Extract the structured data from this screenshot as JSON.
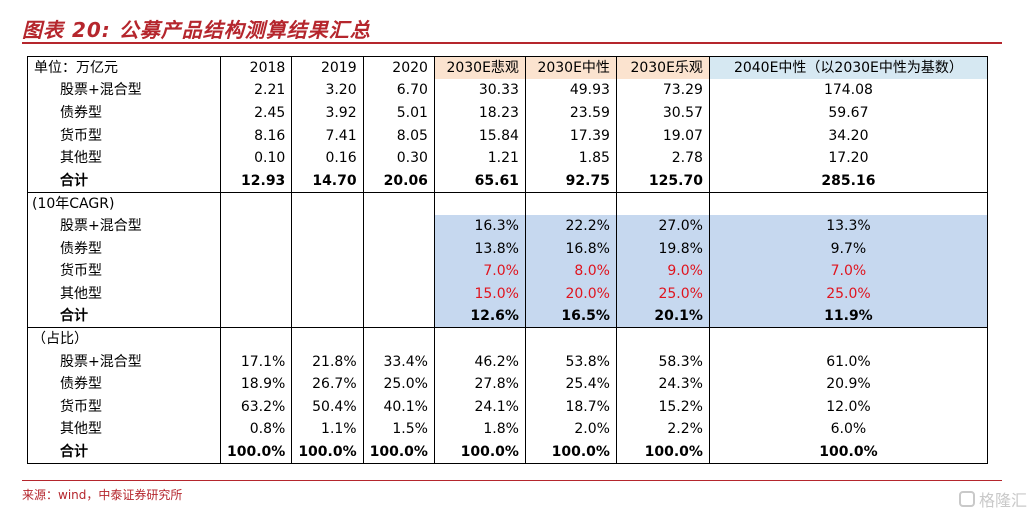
{
  "title": "图表 20:   公募产品结构测算结果汇总",
  "source": "来源：wind，中泰证券研究所",
  "watermark": "格隆汇",
  "header": [
    "单位：万亿元",
    "2018",
    "2019",
    "2020",
    "2030E悲观",
    "2030E中性",
    "2030E乐观",
    "2040E中性（以2030E中性为基数）"
  ],
  "sections": [
    {
      "section_label": "",
      "rows": [
        {
          "label": "股票+混合型",
          "values": [
            "2.21",
            "3.20",
            "6.70",
            "30.33",
            "49.93",
            "73.29",
            "174.08"
          ]
        },
        {
          "label": "债券型",
          "values": [
            "2.45",
            "3.92",
            "5.01",
            "18.23",
            "23.59",
            "30.57",
            "59.67"
          ]
        },
        {
          "label": "货币型",
          "values": [
            "8.16",
            "7.41",
            "8.05",
            "15.84",
            "17.39",
            "19.07",
            "34.20"
          ]
        },
        {
          "label": "其他型",
          "values": [
            "0.10",
            "0.16",
            "0.30",
            "1.21",
            "1.85",
            "2.78",
            "17.20"
          ]
        }
      ],
      "total": {
        "label": "合计",
        "values": [
          "12.93",
          "14.70",
          "20.06",
          "65.61",
          "92.75",
          "125.70",
          "285.16"
        ]
      }
    },
    {
      "section_label": "(10年CAGR)",
      "rows": [
        {
          "label": "股票+混合型",
          "values": [
            "",
            "",
            "",
            "16.3%",
            "22.2%",
            "27.0%",
            "13.3%"
          ]
        },
        {
          "label": "债券型",
          "values": [
            "",
            "",
            "",
            "13.8%",
            "16.8%",
            "19.8%",
            "9.7%"
          ]
        },
        {
          "label": "货币型",
          "values": [
            "",
            "",
            "",
            "7.0%",
            "8.0%",
            "9.0%",
            "7.0%"
          ]
        },
        {
          "label": "其他型",
          "values": [
            "",
            "",
            "",
            "15.0%",
            "20.0%",
            "25.0%",
            "25.0%"
          ]
        }
      ],
      "total": {
        "label": "合计",
        "values": [
          "",
          "",
          "",
          "12.6%",
          "16.5%",
          "20.1%",
          "11.9%"
        ]
      }
    },
    {
      "section_label": "（占比）",
      "rows": [
        {
          "label": "股票+混合型",
          "values": [
            "17.1%",
            "21.8%",
            "33.4%",
            "46.2%",
            "53.8%",
            "58.3%",
            "61.0%"
          ]
        },
        {
          "label": "债券型",
          "values": [
            "18.9%",
            "26.7%",
            "25.0%",
            "27.8%",
            "25.4%",
            "24.3%",
            "20.9%"
          ]
        },
        {
          "label": "货币型",
          "values": [
            "63.2%",
            "50.4%",
            "40.1%",
            "24.1%",
            "18.7%",
            "15.2%",
            "12.0%"
          ]
        },
        {
          "label": "其他型",
          "values": [
            "0.8%",
            "1.1%",
            "1.5%",
            "1.8%",
            "2.0%",
            "2.2%",
            "6.0%"
          ]
        }
      ],
      "total": {
        "label": "合计",
        "values": [
          "100.0%",
          "100.0%",
          "100.0%",
          "100.0%",
          "100.0%",
          "100.0%",
          "100.0%"
        ]
      }
    }
  ],
  "colors": {
    "accent": "#b5262d",
    "header_orange": "#fbe3cf",
    "header_blue": "#d6e8f2",
    "cagr_blue": "#c6d8ef",
    "red_text": "#e0141e"
  },
  "red_rows": [
    2,
    3
  ]
}
